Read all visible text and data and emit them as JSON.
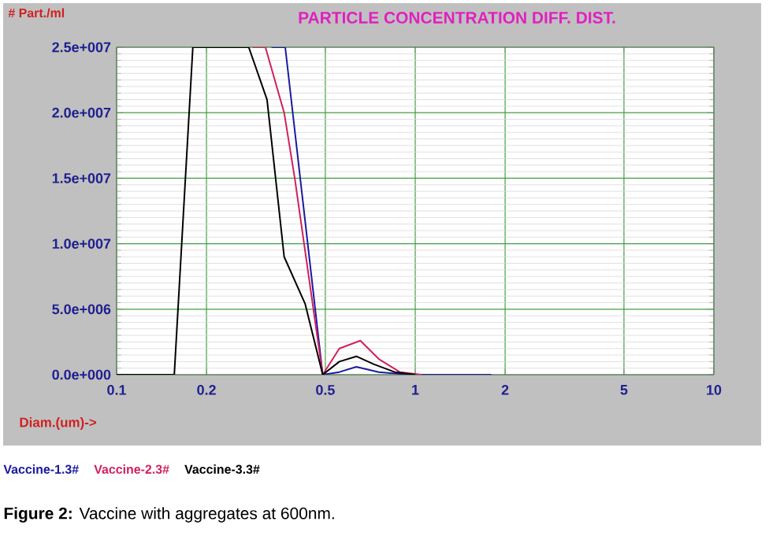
{
  "chart_data": {
    "type": "line",
    "title": "PARTICLE CONCENTRATION DIFF. DIST.",
    "xlabel": "Diam.(um)->",
    "ylabel": "# Part./ml",
    "log": "x",
    "grid": true,
    "legend": "bottom",
    "marker": "none",
    "line_style": "solid",
    "xlim": [
      0.1,
      10
    ],
    "xticks": [
      0.1,
      0.2,
      0.5,
      1,
      2,
      5,
      10
    ],
    "ylim": [
      0,
      25000000
    ],
    "yticks": [
      {
        "value": 0,
        "label": "0.0e+000"
      },
      {
        "value": 5000000,
        "label": "5.0e+006"
      },
      {
        "value": 10000000,
        "label": "1.0e+007"
      },
      {
        "value": 15000000,
        "label": "1.5e+007"
      },
      {
        "value": 20000000,
        "label": "2.0e+007"
      },
      {
        "value": 25000000,
        "label": "2.5e+007"
      }
    ],
    "series": [
      {
        "name": "Vaccine-1.3#",
        "color": "#1a1aa0",
        "x": [
          0.33,
          0.367,
          0.49,
          0.557,
          0.635,
          0.755,
          0.96,
          1.8
        ],
        "values": [
          25000000,
          25000000,
          0,
          200000,
          600000,
          200000,
          0,
          0
        ]
      },
      {
        "name": "Vaccine-2.3#",
        "color": "#d02060",
        "x": [
          0.285,
          0.315,
          0.364,
          0.395,
          0.49,
          0.557,
          0.655,
          0.755,
          0.888,
          1.05
        ],
        "values": [
          25000000,
          25000000,
          20000000,
          15000000,
          0,
          2000000,
          2600000,
          1200000,
          200000,
          0
        ]
      },
      {
        "name": "Vaccine-3.3#",
        "color": "#000000",
        "x": [
          0.1,
          0.156,
          0.18,
          0.277,
          0.319,
          0.364,
          0.428,
          0.49,
          0.557,
          0.635,
          0.726,
          0.853,
          1.0
        ],
        "values": [
          0,
          0,
          25000000,
          25000000,
          21000000,
          9000000,
          5400000,
          0,
          1000000,
          1400000,
          800000,
          200000,
          0
        ]
      }
    ],
    "annotations": [
      "**Figure 2:**  Vaccine with aggregates at 600nm."
    ]
  }
}
